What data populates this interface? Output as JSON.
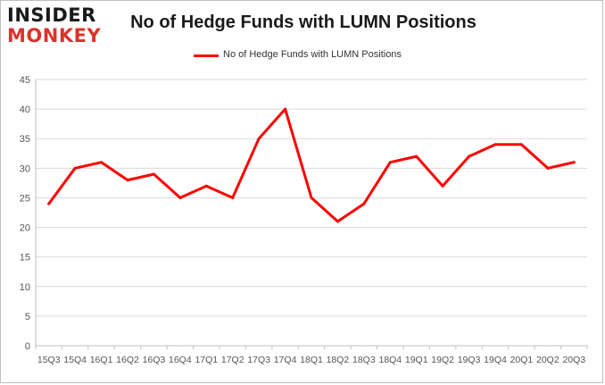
{
  "logo": {
    "line1": "INSIDER",
    "line2": "MONKEY"
  },
  "chart_data": {
    "type": "line",
    "title": "No of Hedge Funds with LUMN Positions",
    "legend_placement": "top-center",
    "grid": true,
    "ylim": [
      0,
      45
    ],
    "yticks": [
      0,
      5,
      10,
      15,
      20,
      25,
      30,
      35,
      40,
      45
    ],
    "categories": [
      "15Q3",
      "15Q4",
      "16Q1",
      "16Q2",
      "16Q3",
      "16Q4",
      "17Q1",
      "17Q2",
      "17Q3",
      "17Q4",
      "18Q1",
      "18Q2",
      "18Q3",
      "18Q4",
      "19Q1",
      "19Q2",
      "19Q3",
      "19Q4",
      "20Q1",
      "20Q2",
      "20Q3"
    ],
    "series": [
      {
        "name": "No of Hedge Funds with LUMN Positions",
        "color": "#ff0000",
        "values": [
          24,
          30,
          31,
          28,
          29,
          25,
          27,
          25,
          35,
          40,
          25,
          21,
          24,
          31,
          32,
          27,
          32,
          34,
          34,
          30,
          31
        ]
      }
    ]
  }
}
